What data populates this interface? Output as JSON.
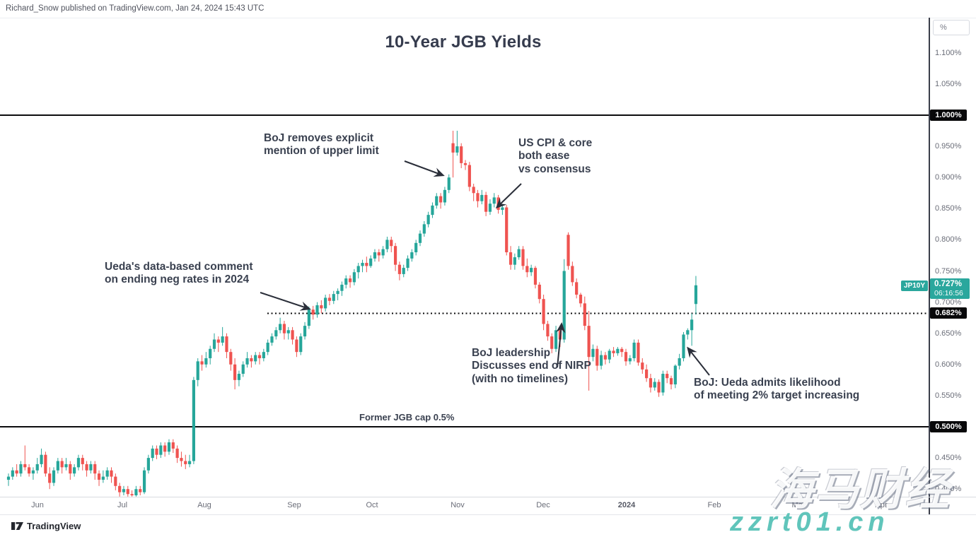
{
  "header": {
    "attribution": "Richard_Snow published on TradingView.com, Jan 24, 2024 15:43 UTC"
  },
  "chart": {
    "title": "10-Year JGB Yields"
  },
  "annotations": {
    "boj_upper_limit": "BoJ removes explicit\nmention of upper limit",
    "us_cpi": "US CPI & core\nboth ease\nvs consensus",
    "ueda_comment": "Ueda's data-based comment\non ending neg rates in 2024",
    "nirp": "BoJ leadership\nDiscusses end of NIRP\n(with no timelines)",
    "ueda_target": "BoJ: Ueda admits likelihood\nof meeting 2% target increasing",
    "former_cap": "Former JGB cap 0.5%"
  },
  "price_axis": {
    "unit_button": "%",
    "ticks": [
      {
        "label": "1.100%",
        "value": 1.1
      },
      {
        "label": "1.050%",
        "value": 1.05
      },
      {
        "label": "0.950%",
        "value": 0.95
      },
      {
        "label": "0.900%",
        "value": 0.9
      },
      {
        "label": "0.850%",
        "value": 0.85
      },
      {
        "label": "0.800%",
        "value": 0.8
      },
      {
        "label": "0.750%",
        "value": 0.75
      },
      {
        "label": "0.700%",
        "value": 0.7
      },
      {
        "label": "0.650%",
        "value": 0.65
      },
      {
        "label": "0.600%",
        "value": 0.6
      },
      {
        "label": "0.550%",
        "value": 0.55
      },
      {
        "label": "0.450%",
        "value": 0.45
      },
      {
        "label": "0.400%",
        "value": 0.4
      }
    ],
    "badges": [
      {
        "label": "1.000%",
        "value": 1.0
      },
      {
        "label": "0.682%",
        "value": 0.682
      },
      {
        "label": "0.500%",
        "value": 0.5
      }
    ],
    "last_price": {
      "symbol": "JP10Y",
      "price": "0.727%",
      "countdown": "06:16:56",
      "value": 0.727
    }
  },
  "time_axis": {
    "labels": [
      "Jun",
      "Jul",
      "Aug",
      "Sep",
      "Oct",
      "Nov",
      "Dec",
      "2024",
      "Feb",
      "Mar",
      "Apr"
    ]
  },
  "footer": {
    "brand": "TradingView"
  },
  "watermark": {
    "cn": "海马财经",
    "site": "zzrt01.cn"
  },
  "colors": {
    "up": "#26a69a",
    "down": "#ef5350",
    "badge_teal": "#2aa79d",
    "badge_black": "#08080a",
    "annotation": "#3a4150"
  },
  "chart_data": {
    "type": "candlestick",
    "title": "10-Year JGB Yields",
    "unit": "percent yield",
    "x_labels": [
      "Jun",
      "Jul",
      "Aug",
      "Sep",
      "Oct",
      "Nov",
      "Dec",
      "2024",
      "Feb",
      "Mar",
      "Apr"
    ],
    "ylim": [
      0.385,
      1.135
    ],
    "grid": false,
    "hlines": [
      {
        "value": 1.0,
        "style": "solid"
      },
      {
        "value": 0.5,
        "style": "solid"
      },
      {
        "value": 0.682,
        "style": "dotted"
      }
    ],
    "last_close": 0.727,
    "candles_ohlc": [
      [
        0.415,
        0.425,
        0.405,
        0.42
      ],
      [
        0.42,
        0.435,
        0.415,
        0.43
      ],
      [
        0.43,
        0.44,
        0.42,
        0.425
      ],
      [
        0.425,
        0.445,
        0.42,
        0.44
      ],
      [
        0.44,
        0.47,
        0.43,
        0.435
      ],
      [
        0.435,
        0.44,
        0.42,
        0.425
      ],
      [
        0.425,
        0.435,
        0.415,
        0.43
      ],
      [
        0.43,
        0.45,
        0.425,
        0.44
      ],
      [
        0.44,
        0.465,
        0.435,
        0.455
      ],
      [
        0.455,
        0.46,
        0.42,
        0.425
      ],
      [
        0.425,
        0.435,
        0.4,
        0.41
      ],
      [
        0.41,
        0.435,
        0.405,
        0.43
      ],
      [
        0.43,
        0.45,
        0.425,
        0.445
      ],
      [
        0.445,
        0.45,
        0.425,
        0.435
      ],
      [
        0.435,
        0.45,
        0.43,
        0.44
      ],
      [
        0.44,
        0.445,
        0.415,
        0.425
      ],
      [
        0.425,
        0.44,
        0.42,
        0.435
      ],
      [
        0.435,
        0.455,
        0.43,
        0.45
      ],
      [
        0.45,
        0.455,
        0.43,
        0.44
      ],
      [
        0.44,
        0.445,
        0.42,
        0.43
      ],
      [
        0.43,
        0.445,
        0.425,
        0.44
      ],
      [
        0.44,
        0.445,
        0.415,
        0.425
      ],
      [
        0.425,
        0.43,
        0.405,
        0.415
      ],
      [
        0.415,
        0.43,
        0.41,
        0.42
      ],
      [
        0.42,
        0.435,
        0.415,
        0.43
      ],
      [
        0.43,
        0.435,
        0.41,
        0.42
      ],
      [
        0.42,
        0.425,
        0.398,
        0.405
      ],
      [
        0.405,
        0.41,
        0.388,
        0.395
      ],
      [
        0.395,
        0.405,
        0.39,
        0.4
      ],
      [
        0.4,
        0.405,
        0.388,
        0.392
      ],
      [
        0.392,
        0.398,
        0.388,
        0.39
      ],
      [
        0.39,
        0.405,
        0.388,
        0.4
      ],
      [
        0.4,
        0.405,
        0.39,
        0.395
      ],
      [
        0.395,
        0.435,
        0.392,
        0.43
      ],
      [
        0.43,
        0.455,
        0.425,
        0.45
      ],
      [
        0.45,
        0.47,
        0.445,
        0.465
      ],
      [
        0.465,
        0.47,
        0.448,
        0.455
      ],
      [
        0.455,
        0.475,
        0.45,
        0.47
      ],
      [
        0.47,
        0.475,
        0.452,
        0.46
      ],
      [
        0.46,
        0.48,
        0.455,
        0.475
      ],
      [
        0.475,
        0.48,
        0.458,
        0.465
      ],
      [
        0.465,
        0.47,
        0.442,
        0.45
      ],
      [
        0.45,
        0.46,
        0.436,
        0.445
      ],
      [
        0.445,
        0.455,
        0.432,
        0.44
      ],
      [
        0.44,
        0.455,
        0.435,
        0.445
      ],
      [
        0.445,
        0.58,
        0.44,
        0.575
      ],
      [
        0.575,
        0.61,
        0.565,
        0.605
      ],
      [
        0.605,
        0.615,
        0.59,
        0.6
      ],
      [
        0.6,
        0.62,
        0.595,
        0.61
      ],
      [
        0.61,
        0.63,
        0.6,
        0.625
      ],
      [
        0.625,
        0.65,
        0.62,
        0.64
      ],
      [
        0.64,
        0.645,
        0.62,
        0.635
      ],
      [
        0.635,
        0.66,
        0.63,
        0.645
      ],
      [
        0.645,
        0.65,
        0.61,
        0.62
      ],
      [
        0.62,
        0.625,
        0.59,
        0.6
      ],
      [
        0.6,
        0.61,
        0.56,
        0.575
      ],
      [
        0.575,
        0.59,
        0.565,
        0.585
      ],
      [
        0.585,
        0.605,
        0.58,
        0.6
      ],
      [
        0.6,
        0.62,
        0.595,
        0.61
      ],
      [
        0.61,
        0.615,
        0.595,
        0.605
      ],
      [
        0.605,
        0.62,
        0.6,
        0.615
      ],
      [
        0.615,
        0.62,
        0.6,
        0.61
      ],
      [
        0.61,
        0.625,
        0.605,
        0.62
      ],
      [
        0.62,
        0.64,
        0.615,
        0.635
      ],
      [
        0.635,
        0.65,
        0.63,
        0.645
      ],
      [
        0.645,
        0.66,
        0.64,
        0.655
      ],
      [
        0.655,
        0.675,
        0.65,
        0.665
      ],
      [
        0.665,
        0.67,
        0.64,
        0.65
      ],
      [
        0.65,
        0.66,
        0.64,
        0.655
      ],
      [
        0.655,
        0.66,
        0.632,
        0.64
      ],
      [
        0.64,
        0.645,
        0.612,
        0.62
      ],
      [
        0.62,
        0.65,
        0.615,
        0.645
      ],
      [
        0.645,
        0.668,
        0.64,
        0.662
      ],
      [
        0.662,
        0.693,
        0.657,
        0.688
      ],
      [
        0.688,
        0.694,
        0.672,
        0.68
      ],
      [
        0.68,
        0.7,
        0.675,
        0.695
      ],
      [
        0.695,
        0.703,
        0.682,
        0.69
      ],
      [
        0.69,
        0.712,
        0.685,
        0.707
      ],
      [
        0.707,
        0.713,
        0.695,
        0.702
      ],
      [
        0.702,
        0.718,
        0.697,
        0.713
      ],
      [
        0.713,
        0.722,
        0.703,
        0.718
      ],
      [
        0.718,
        0.733,
        0.71,
        0.728
      ],
      [
        0.728,
        0.743,
        0.722,
        0.738
      ],
      [
        0.738,
        0.743,
        0.723,
        0.732
      ],
      [
        0.732,
        0.753,
        0.727,
        0.748
      ],
      [
        0.748,
        0.763,
        0.738,
        0.758
      ],
      [
        0.758,
        0.768,
        0.748,
        0.763
      ],
      [
        0.763,
        0.773,
        0.748,
        0.758
      ],
      [
        0.758,
        0.775,
        0.755,
        0.77
      ],
      [
        0.77,
        0.785,
        0.765,
        0.78
      ],
      [
        0.78,
        0.785,
        0.765,
        0.775
      ],
      [
        0.775,
        0.79,
        0.77,
        0.785
      ],
      [
        0.785,
        0.805,
        0.78,
        0.8
      ],
      [
        0.8,
        0.805,
        0.78,
        0.79
      ],
      [
        0.79,
        0.795,
        0.75,
        0.76
      ],
      [
        0.76,
        0.765,
        0.735,
        0.745
      ],
      [
        0.745,
        0.76,
        0.74,
        0.755
      ],
      [
        0.755,
        0.775,
        0.75,
        0.77
      ],
      [
        0.77,
        0.785,
        0.765,
        0.78
      ],
      [
        0.78,
        0.8,
        0.775,
        0.795
      ],
      [
        0.795,
        0.815,
        0.79,
        0.81
      ],
      [
        0.81,
        0.83,
        0.805,
        0.825
      ],
      [
        0.825,
        0.845,
        0.82,
        0.84
      ],
      [
        0.84,
        0.86,
        0.835,
        0.855
      ],
      [
        0.855,
        0.875,
        0.85,
        0.87
      ],
      [
        0.87,
        0.875,
        0.85,
        0.86
      ],
      [
        0.86,
        0.885,
        0.855,
        0.88
      ],
      [
        0.88,
        0.905,
        0.875,
        0.9
      ],
      [
        0.955,
        0.975,
        0.9,
        0.94
      ],
      [
        0.94,
        0.975,
        0.935,
        0.95
      ],
      [
        0.95,
        0.955,
        0.915,
        0.923
      ],
      [
        0.923,
        0.928,
        0.912,
        0.92
      ],
      [
        0.92,
        0.925,
        0.878,
        0.885
      ],
      [
        0.885,
        0.89,
        0.862,
        0.875
      ],
      [
        0.875,
        0.88,
        0.852,
        0.862
      ],
      [
        0.862,
        0.88,
        0.857,
        0.872
      ],
      [
        0.872,
        0.877,
        0.838,
        0.845
      ],
      [
        0.845,
        0.865,
        0.84,
        0.858
      ],
      [
        0.858,
        0.875,
        0.852,
        0.868
      ],
      [
        0.868,
        0.872,
        0.842,
        0.848
      ],
      [
        0.848,
        0.855,
        0.84,
        0.852
      ],
      [
        0.852,
        0.856,
        0.775,
        0.78
      ],
      [
        0.78,
        0.79,
        0.752,
        0.76
      ],
      [
        0.76,
        0.778,
        0.752,
        0.772
      ],
      [
        0.772,
        0.79,
        0.768,
        0.785
      ],
      [
        0.785,
        0.79,
        0.752,
        0.758
      ],
      [
        0.758,
        0.77,
        0.74,
        0.748
      ],
      [
        0.748,
        0.76,
        0.742,
        0.755
      ],
      [
        0.755,
        0.758,
        0.722,
        0.728
      ],
      [
        0.728,
        0.732,
        0.698,
        0.705
      ],
      [
        0.705,
        0.712,
        0.655,
        0.665
      ],
      [
        0.665,
        0.67,
        0.638,
        0.645
      ],
      [
        0.645,
        0.65,
        0.618,
        0.625
      ],
      [
        0.625,
        0.662,
        0.62,
        0.655
      ],
      [
        0.655,
        0.66,
        0.628,
        0.64
      ],
      [
        0.64,
        0.769,
        0.635,
        0.75
      ],
      [
        0.808,
        0.812,
        0.752,
        0.758
      ],
      [
        0.758,
        0.765,
        0.726,
        0.732
      ],
      [
        0.732,
        0.738,
        0.706,
        0.712
      ],
      [
        0.712,
        0.715,
        0.692,
        0.698
      ],
      [
        0.698,
        0.709,
        0.655,
        0.662
      ],
      [
        0.662,
        0.686,
        0.558,
        0.612
      ],
      [
        0.612,
        0.632,
        0.605,
        0.625
      ],
      [
        0.625,
        0.63,
        0.59,
        0.598
      ],
      [
        0.598,
        0.622,
        0.592,
        0.615
      ],
      [
        0.615,
        0.62,
        0.6,
        0.608
      ],
      [
        0.608,
        0.625,
        0.602,
        0.622
      ],
      [
        0.622,
        0.628,
        0.612,
        0.618
      ],
      [
        0.618,
        0.628,
        0.614,
        0.625
      ],
      [
        0.625,
        0.628,
        0.612,
        0.62
      ],
      [
        0.62,
        0.625,
        0.598,
        0.605
      ],
      [
        0.605,
        0.615,
        0.6,
        0.61
      ],
      [
        0.61,
        0.64,
        0.605,
        0.635
      ],
      [
        0.635,
        0.64,
        0.598,
        0.603
      ],
      [
        0.603,
        0.61,
        0.585,
        0.592
      ],
      [
        0.592,
        0.6,
        0.572,
        0.578
      ],
      [
        0.578,
        0.585,
        0.555,
        0.563
      ],
      [
        0.563,
        0.578,
        0.558,
        0.572
      ],
      [
        0.572,
        0.576,
        0.548,
        0.555
      ],
      [
        0.555,
        0.59,
        0.55,
        0.585
      ],
      [
        0.585,
        0.59,
        0.57,
        0.578
      ],
      [
        0.578,
        0.582,
        0.56,
        0.568
      ],
      [
        0.568,
        0.6,
        0.562,
        0.598
      ],
      [
        0.598,
        0.617,
        0.592,
        0.61
      ],
      [
        0.61,
        0.652,
        0.605,
        0.648
      ],
      [
        0.648,
        0.658,
        0.64,
        0.655
      ],
      [
        0.655,
        0.682,
        0.63,
        0.672
      ],
      [
        0.697,
        0.742,
        0.68,
        0.727
      ]
    ]
  }
}
